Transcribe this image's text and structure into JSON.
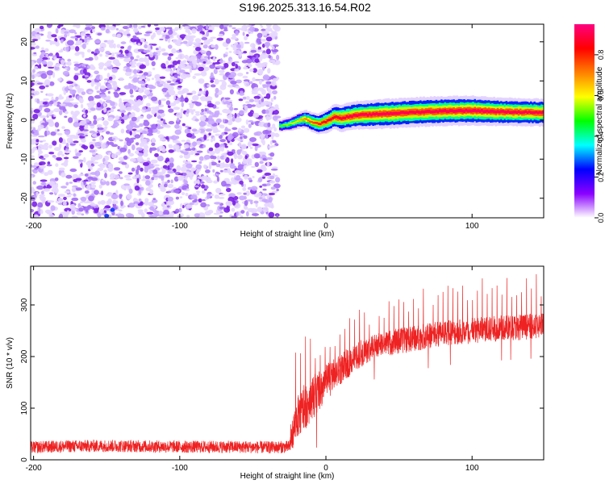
{
  "title": "S196.2025.313.16.54.R02",
  "chart_data": [
    {
      "type": "heatmap",
      "title": "S196.2025.313.16.54.R02",
      "xlabel": "Height of straight line (km)",
      "ylabel": "Frequency (Hz)",
      "xlim": [
        -202,
        149
      ],
      "ylim": [
        -25,
        24.5
      ],
      "xticks": [
        -200,
        -100,
        0,
        100
      ],
      "yticks": [
        20,
        10,
        0,
        -10,
        -20
      ],
      "noise_region_km": [
        -202,
        -33
      ],
      "noise_level": "scattered low-to-mid amplitude (purple) speckle across all frequencies",
      "signal_track": {
        "x_km": [
          -32,
          -25,
          -20,
          -15,
          -10,
          -5,
          0,
          5,
          10,
          20,
          40,
          60,
          80,
          100,
          120,
          149
        ],
        "freq_hz": [
          -1.5,
          -1.0,
          -0.2,
          0.3,
          -0.5,
          -1.0,
          -0.3,
          0.8,
          0.5,
          1.2,
          1.6,
          2.0,
          2.3,
          2.4,
          2.1,
          1.9
        ],
        "peak_amplitude": [
          0.55,
          0.6,
          0.65,
          0.75,
          0.8,
          0.85,
          0.9,
          0.92,
          0.93,
          0.95,
          0.96,
          0.95,
          0.96,
          0.97,
          0.96,
          0.95
        ],
        "bandwidth_hz": [
          1.5,
          1.8,
          2.0,
          2.3,
          2.5,
          2.7,
          3.0,
          3.2,
          3.5,
          3.6,
          3.8,
          3.8,
          3.8,
          3.8,
          3.6,
          3.5
        ]
      },
      "colorbar": {
        "label": "Normalized spectral amplitude",
        "range": [
          0.0,
          0.95
        ],
        "ticks": [
          "0.0",
          "0.2",
          "0.4",
          "0.6",
          "0.8"
        ],
        "colormap": "rainbow",
        "colors": [
          "#ffffff",
          "#8a00ff",
          "#0000ff",
          "#00ffff",
          "#00ff00",
          "#ffff00",
          "#ff8000",
          "#ff0000",
          "#ff0080"
        ]
      }
    },
    {
      "type": "line",
      "xlabel": "Height of straight line (km)",
      "ylabel": "SNR (10 * v/v)",
      "xlim": [
        -202,
        149
      ],
      "ylim": [
        0,
        375
      ],
      "xticks": [
        -200,
        -100,
        0,
        100
      ],
      "yticks": [
        0,
        100,
        200,
        300
      ],
      "series": [
        {
          "name": "SNR",
          "color": "#ee2222",
          "x": [
            -202,
            -180,
            -150,
            -120,
            -90,
            -60,
            -40,
            -25,
            -22,
            -20,
            -15,
            -10,
            -5,
            0,
            10,
            20,
            30,
            40,
            60,
            80,
            100,
            120,
            149
          ],
          "base": [
            24,
            26,
            27,
            26,
            25,
            25,
            24,
            25,
            60,
            80,
            100,
            120,
            130,
            150,
            175,
            200,
            215,
            225,
            235,
            245,
            250,
            255,
            260
          ],
          "noise_amplitude": [
            12,
            12,
            12,
            12,
            12,
            12,
            12,
            12,
            35,
            40,
            45,
            45,
            40,
            35,
            30,
            28,
            25,
            25,
            25,
            25,
            25,
            25,
            25
          ],
          "spike_peaks": [
            30,
            32,
            33,
            32,
            31,
            31,
            30,
            30,
            200,
            230,
            240,
            250,
            240,
            240,
            270,
            290,
            300,
            315,
            330,
            340,
            350,
            360,
            360
          ]
        }
      ]
    }
  ]
}
